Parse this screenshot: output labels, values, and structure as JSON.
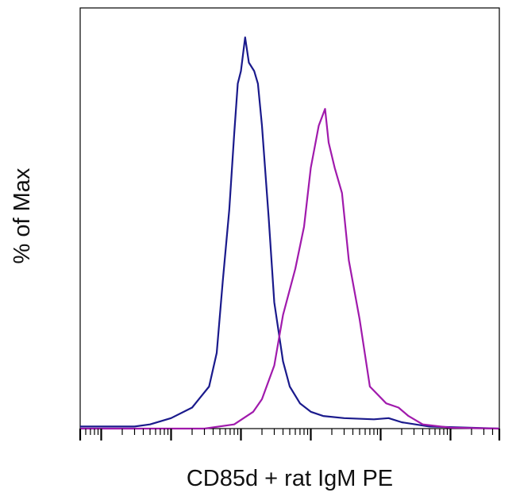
{
  "chart_data": {
    "type": "line",
    "title": "",
    "xlabel": "CD85d + rat IgM PE",
    "ylabel": "% of Max",
    "x_scale": "log",
    "xlim": [
      0.5,
      500000
    ],
    "ylim": [
      0,
      100
    ],
    "grid": false,
    "legend": "none",
    "series": [
      {
        "color": "#1a1a8c",
        "points": [
          [
            0.5,
            0.5
          ],
          [
            3,
            0.5
          ],
          [
            5,
            1.0
          ],
          [
            10,
            2.5
          ],
          [
            20,
            5.0
          ],
          [
            35,
            10.0
          ],
          [
            45,
            18.0
          ],
          [
            55,
            35.0
          ],
          [
            68,
            52.0
          ],
          [
            80,
            70.0
          ],
          [
            90,
            82.0
          ],
          [
            100,
            85.0
          ],
          [
            115,
            93.0
          ],
          [
            130,
            87.0
          ],
          [
            155,
            85.0
          ],
          [
            175,
            82.0
          ],
          [
            200,
            72.0
          ],
          [
            250,
            50.0
          ],
          [
            300,
            30.0
          ],
          [
            400,
            16.0
          ],
          [
            500,
            10.0
          ],
          [
            700,
            6.0
          ],
          [
            1000,
            4.0
          ],
          [
            1500,
            3.0
          ],
          [
            3000,
            2.5
          ],
          [
            8000,
            2.2
          ],
          [
            13000,
            2.5
          ],
          [
            20000,
            1.5
          ],
          [
            50000,
            0.5
          ],
          [
            500000,
            0
          ]
        ]
      },
      {
        "color": "#a01aac",
        "points": [
          [
            0.5,
            0
          ],
          [
            30,
            0
          ],
          [
            80,
            1.0
          ],
          [
            150,
            4.0
          ],
          [
            200,
            7.0
          ],
          [
            300,
            15.0
          ],
          [
            400,
            27.0
          ],
          [
            600,
            38.0
          ],
          [
            800,
            48.0
          ],
          [
            1000,
            62.0
          ],
          [
            1300,
            72.0
          ],
          [
            1600,
            76.0
          ],
          [
            1800,
            68.0
          ],
          [
            2200,
            62.0
          ],
          [
            2800,
            56.0
          ],
          [
            3500,
            40.0
          ],
          [
            5000,
            26.0
          ],
          [
            7000,
            10.0
          ],
          [
            12000,
            6.0
          ],
          [
            18000,
            5.0
          ],
          [
            25000,
            3.0
          ],
          [
            40000,
            1.0
          ],
          [
            100000,
            0.2
          ],
          [
            500000,
            0
          ]
        ]
      }
    ],
    "x_major_ticks": [
      1,
      10,
      100,
      1000,
      10000,
      100000
    ]
  }
}
